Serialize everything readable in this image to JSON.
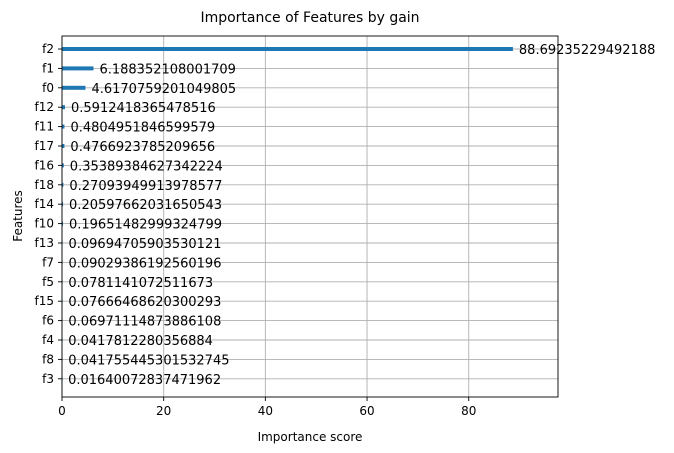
{
  "chart_data": {
    "type": "bar",
    "orientation": "horizontal",
    "title": "Importance of Features by gain",
    "xlabel": "Importance score",
    "ylabel": "Features",
    "xlim": [
      0,
      97.56
    ],
    "xticks": [
      "0",
      "20",
      "40",
      "60",
      "80"
    ],
    "grid": true,
    "bar_color": "#1f77b4",
    "categories": [
      "f2",
      "f1",
      "f0",
      "f12",
      "f11",
      "f17",
      "f16",
      "f18",
      "f14",
      "f10",
      "f13",
      "f7",
      "f5",
      "f15",
      "f6",
      "f4",
      "f8",
      "f3"
    ],
    "values": [
      88.69235229492188,
      6.188352108001709,
      4.6170759201049805,
      0.5912418365478516,
      0.4804951846599579,
      0.4766923785209656,
      0.35389384627342224,
      0.27093949913978577,
      0.20597662031650543,
      0.19651482999324799,
      0.09694705903530121,
      0.09029386192560196,
      0.0781141072511673,
      0.07666468620300293,
      0.06971114873886108,
      0.0417812280356884,
      0.041755445301532745,
      0.01640072837471962
    ],
    "labels": [
      "88.69235229492188",
      "6.188352108001709",
      "4.6170759201049805",
      "0.5912418365478516",
      "0.4804951846599579",
      "0.4766923785209656",
      "0.35389384627342224",
      "0.27093949913978577",
      "0.20597662031650543",
      "0.19651482999324799",
      "0.09694705903530121",
      "0.09029386192560196",
      "0.0781141072511673",
      "0.07666468620300293",
      "0.06971114873886108",
      "0.0417812280356884",
      "0.041755445301532745",
      "0.01640072837471962"
    ]
  }
}
